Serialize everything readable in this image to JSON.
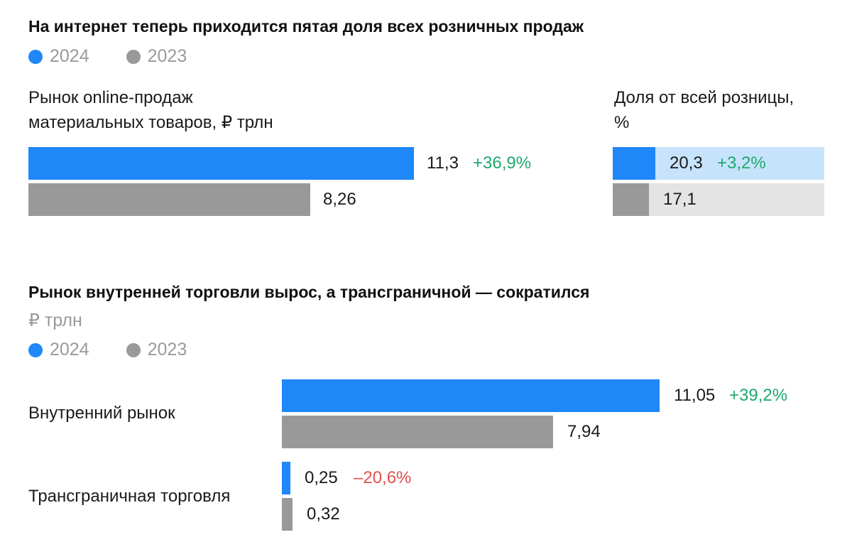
{
  "colors": {
    "y2024": "#1f87f7",
    "y2023": "#999999",
    "share_track_2024": "#c7e3fb",
    "share_track_2023": "#e4e4e4",
    "positive": "#1ea86d",
    "negative": "#e0504d"
  },
  "legend": {
    "y2024": "2024",
    "y2023": "2023"
  },
  "chart_data": [
    {
      "type": "bar",
      "orientation": "horizontal",
      "title": "На интернет теперь приходится пятая доля всех розничных продаж",
      "legend": [
        "2024",
        "2023"
      ],
      "panels": [
        {
          "label_line1": "Рынок online-продаж",
          "label_line2": "материальных товаров, ₽ трлн",
          "series": [
            {
              "name": "2024",
              "value": 11.3,
              "value_label": "11,3",
              "change_label": "+36,9%"
            },
            {
              "name": "2023",
              "value": 8.26,
              "value_label": "8,26",
              "change_label": ""
            }
          ],
          "xlim": [
            0,
            11.3
          ]
        },
        {
          "label_line1": "Доля от всей розницы,",
          "label_line2": "%",
          "series": [
            {
              "name": "2024",
              "value": 20.3,
              "value_label": "20,3",
              "change_label": "+3,2%"
            },
            {
              "name": "2023",
              "value": 17.1,
              "value_label": "17,1",
              "change_label": ""
            }
          ],
          "xlim": [
            0,
            100
          ]
        }
      ]
    },
    {
      "type": "bar",
      "orientation": "horizontal",
      "title": "Рынок внутренней торговли вырос, а трансграничной — сократился",
      "unit": "₽ трлн",
      "legend": [
        "2024",
        "2023"
      ],
      "categories": [
        {
          "label": "Внутренний рынок",
          "series": [
            {
              "name": "2024",
              "value": 11.05,
              "value_label": "11,05",
              "change_label": "+39,2%",
              "change_sign": "positive"
            },
            {
              "name": "2023",
              "value": 7.94,
              "value_label": "7,94",
              "change_label": "",
              "change_sign": ""
            }
          ]
        },
        {
          "label": "Трансграничная торговля",
          "series": [
            {
              "name": "2024",
              "value": 0.25,
              "value_label": "0,25",
              "change_label": "–20,6%",
              "change_sign": "negative"
            },
            {
              "name": "2023",
              "value": 0.32,
              "value_label": "0,32",
              "change_label": "",
              "change_sign": ""
            }
          ]
        }
      ],
      "xlim": [
        0,
        11.05
      ]
    }
  ]
}
